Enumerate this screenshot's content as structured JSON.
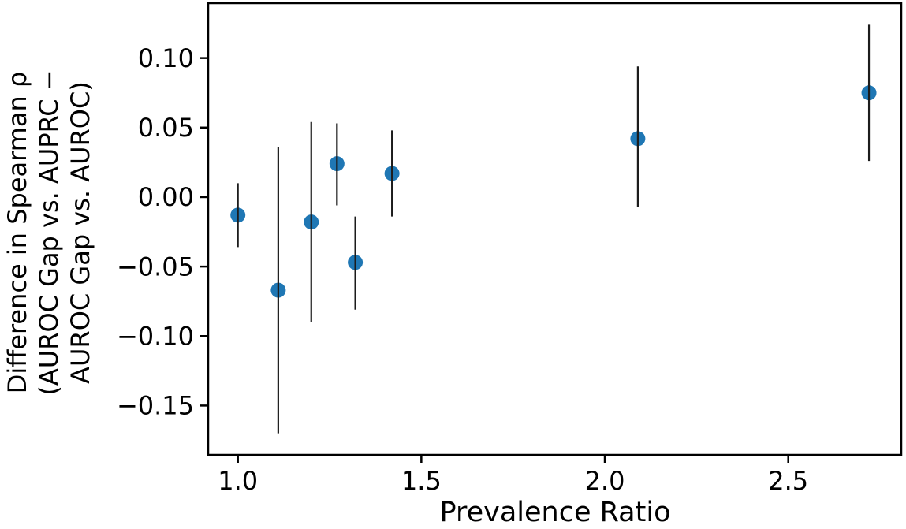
{
  "chart_data": {
    "type": "scatter",
    "title": "",
    "xlabel": "Prevalence Ratio",
    "ylabel_lines": [
      "Difference in Spearman ρ",
      "(AUROC Gap vs. AUPRC −",
      "AUROC Gap vs. AUROC)"
    ],
    "xlim": [
      0.919,
      2.808
    ],
    "ylim": [
      -0.1855,
      0.1395
    ],
    "grid": false,
    "legend": "none",
    "xticks": {
      "values": [
        1.0,
        1.5,
        2.0,
        2.5
      ],
      "labels": [
        "1.0",
        "1.5",
        "2.0",
        "2.5"
      ]
    },
    "yticks": {
      "values": [
        0.1,
        0.05,
        0.0,
        -0.05,
        -0.1,
        -0.15
      ],
      "labels": [
        "0.10",
        "0.05",
        "0.00",
        "−0.05",
        "−0.10",
        "−0.15"
      ]
    },
    "series": [
      {
        "name": "prevalence-ratio-vs-spearman-difference",
        "points": [
          {
            "x": 1.0,
            "y": -0.013,
            "y_err_low": -0.036,
            "y_err_high": 0.01
          },
          {
            "x": 1.11,
            "y": -0.067,
            "y_err_low": -0.17,
            "y_err_high": 0.036
          },
          {
            "x": 1.2,
            "y": -0.018,
            "y_err_low": -0.09,
            "y_err_high": 0.054
          },
          {
            "x": 1.27,
            "y": 0.024,
            "y_err_low": -0.006,
            "y_err_high": 0.053
          },
          {
            "x": 1.32,
            "y": -0.047,
            "y_err_low": -0.081,
            "y_err_high": -0.014
          },
          {
            "x": 1.42,
            "y": 0.017,
            "y_err_low": -0.014,
            "y_err_high": 0.048
          },
          {
            "x": 2.09,
            "y": 0.042,
            "y_err_low": -0.007,
            "y_err_high": 0.094
          },
          {
            "x": 2.72,
            "y": 0.075,
            "y_err_low": 0.026,
            "y_err_high": 0.124
          }
        ]
      }
    ],
    "colors": {
      "marker": "#1f77b4",
      "error_bar": "#1c1c1c",
      "axis": "#000000",
      "background": "#ffffff"
    }
  }
}
